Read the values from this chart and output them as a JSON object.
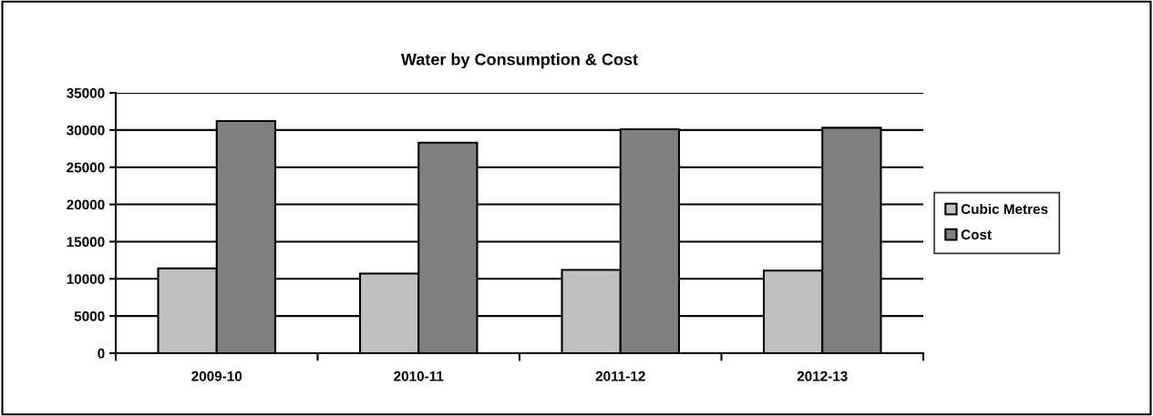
{
  "chart_data": {
    "type": "bar",
    "title": "Water by Consumption & Cost",
    "categories": [
      "2009-10",
      "2010-11",
      "2011-12",
      "2012-13"
    ],
    "series": [
      {
        "name": "Cubic Metres",
        "color": "#c0c0c0",
        "values": [
          11400,
          10700,
          11200,
          11100
        ]
      },
      {
        "name": "Cost",
        "color": "#808080",
        "values": [
          31200,
          28300,
          30100,
          30300
        ]
      }
    ],
    "ylim": [
      0,
      35000
    ],
    "yticks": [
      0,
      5000,
      10000,
      15000,
      20000,
      25000,
      30000,
      35000
    ],
    "grid": "y",
    "legend": "right"
  }
}
